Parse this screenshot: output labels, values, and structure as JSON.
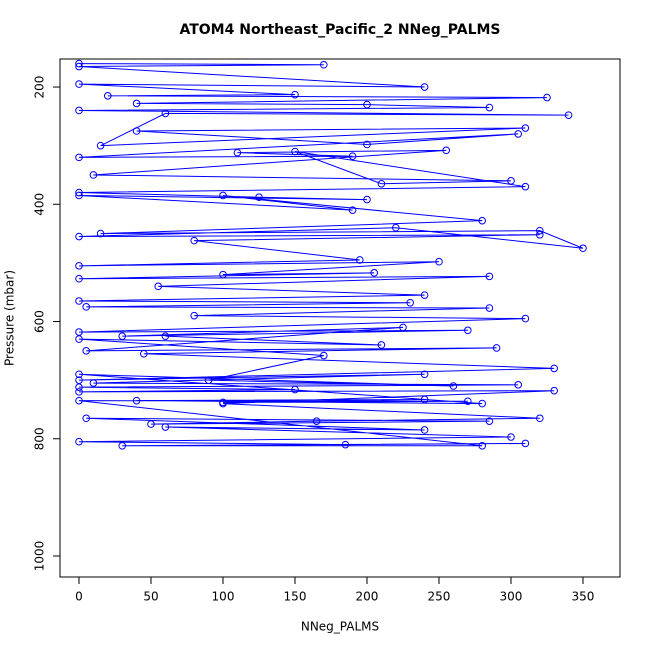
{
  "chart_data": {
    "type": "line",
    "title": "ATOM4 Northeast_Pacific_2 NNeg_PALMS",
    "x_label": "NNeg_PALMS",
    "y_label": "Pressure (mbar)",
    "color": "#0000ff",
    "markers": true,
    "x": [
      0,
      170,
      0,
      240,
      0,
      150,
      20,
      325,
      40,
      200,
      285,
      0,
      340,
      60,
      15,
      310,
      40,
      200,
      305,
      0,
      190,
      110,
      255,
      10,
      300,
      210,
      150,
      310,
      0,
      125,
      200,
      0,
      190,
      100,
      280,
      15,
      320,
      350,
      220,
      0,
      320,
      80,
      195,
      0,
      250,
      100,
      205,
      0,
      285,
      55,
      240,
      0,
      230,
      5,
      285,
      80,
      310,
      0,
      270,
      30,
      225,
      5,
      290,
      45,
      330,
      0,
      240,
      10,
      305,
      0,
      150,
      0,
      330,
      100,
      320,
      165,
      50,
      285,
      5,
      240,
      60,
      300,
      0,
      185,
      310,
      30,
      280,
      0,
      270,
      100,
      240,
      40,
      280,
      0,
      260,
      90,
      170,
      0,
      210,
      60
    ],
    "values": [
      160,
      162,
      165,
      200,
      195,
      213,
      215,
      218,
      228,
      230,
      235,
      240,
      248,
      245,
      300,
      270,
      275,
      298,
      280,
      320,
      318,
      312,
      308,
      350,
      360,
      365,
      310,
      370,
      380,
      388,
      392,
      385,
      410,
      385,
      428,
      450,
      445,
      475,
      440,
      455,
      452,
      462,
      495,
      505,
      498,
      520,
      517,
      527,
      523,
      540,
      555,
      565,
      568,
      575,
      577,
      590,
      595,
      618,
      615,
      625,
      610,
      650,
      645,
      655,
      680,
      700,
      690,
      705,
      708,
      712,
      716,
      720,
      718,
      740,
      765,
      770,
      775,
      770,
      765,
      785,
      780,
      797,
      805,
      810,
      808,
      812,
      812,
      735,
      736,
      738,
      733,
      735,
      740,
      690,
      710,
      700,
      658,
      630,
      640,
      625
    ],
    "xlim": [
      -13.2,
      375.7
    ],
    "ylim": [
      1035.8,
      152.2
    ],
    "xticks": [
      0,
      50,
      100,
      150,
      200,
      250,
      300,
      350
    ],
    "yticks": [
      200,
      400,
      600,
      800,
      1000
    ]
  }
}
